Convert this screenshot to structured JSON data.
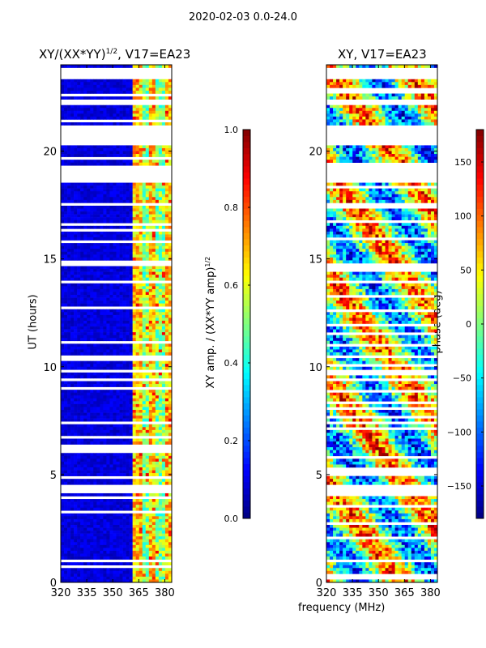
{
  "suptitle": "2020-02-03 0.0-24.0",
  "chart_data": [
    {
      "type": "heatmap",
      "title": "XY/(XX*YY)^1/2, V17=EA23",
      "title_main": "XY/(XX*YY)",
      "title_sup": "1/2",
      "title_tail": ", V17=EA23",
      "xlabel": "",
      "ylabel": "UT (hours)",
      "xlim": [
        320,
        384
      ],
      "ylim": [
        0,
        24
      ],
      "x_ticks": [
        320,
        335,
        350,
        365,
        380
      ],
      "x_tick_labels": [
        "320",
        "335",
        "350",
        "365",
        "380"
      ],
      "y_ticks": [
        0,
        5,
        10,
        15,
        20
      ],
      "y_tick_labels": [
        "0",
        "5",
        "10",
        "15",
        "20"
      ],
      "colorbar": {
        "label": "XY amp. / (XX*YY amp)^1/2",
        "label_main": "XY amp. / (XX*YY amp)",
        "label_sup": "1/2",
        "range": [
          0.0,
          1.0
        ],
        "ticks": [
          0.0,
          0.2,
          0.4,
          0.6,
          0.8,
          1.0
        ],
        "tick_labels": [
          "0.0",
          "0.2",
          "0.4",
          "0.6",
          "0.8",
          "1.0"
        ],
        "colormap": "jet"
      },
      "flagged_hours": [
        [
          4.2,
          4.6
        ],
        [
          18.6,
          19.3
        ],
        [
          20.3,
          21.2
        ],
        [
          23.4,
          23.7
        ]
      ]
    },
    {
      "type": "heatmap",
      "title": "XY, V17=EA23",
      "xlabel": "frequency (MHz)",
      "ylabel": "",
      "xlim": [
        320,
        384
      ],
      "ylim": [
        0,
        24
      ],
      "x_ticks": [
        320,
        335,
        350,
        365,
        380
      ],
      "x_tick_labels": [
        "320",
        "335",
        "350",
        "365",
        "380"
      ],
      "y_ticks": [
        0,
        5,
        10,
        15,
        20
      ],
      "y_tick_labels": [
        "0",
        "5",
        "10",
        "15",
        "20"
      ],
      "colorbar": {
        "label": "phase (deg)",
        "range": [
          -180,
          180
        ],
        "ticks": [
          -150,
          -100,
          -50,
          0,
          50,
          100,
          150
        ],
        "tick_labels": [
          "−150",
          "−100",
          "−50",
          "0",
          "50",
          "100",
          "150"
        ],
        "colormap": "jet"
      },
      "flagged_hours": [
        [
          4.2,
          4.6
        ],
        [
          18.6,
          19.3
        ],
        [
          20.3,
          21.2
        ],
        [
          23.4,
          23.7
        ]
      ]
    }
  ]
}
